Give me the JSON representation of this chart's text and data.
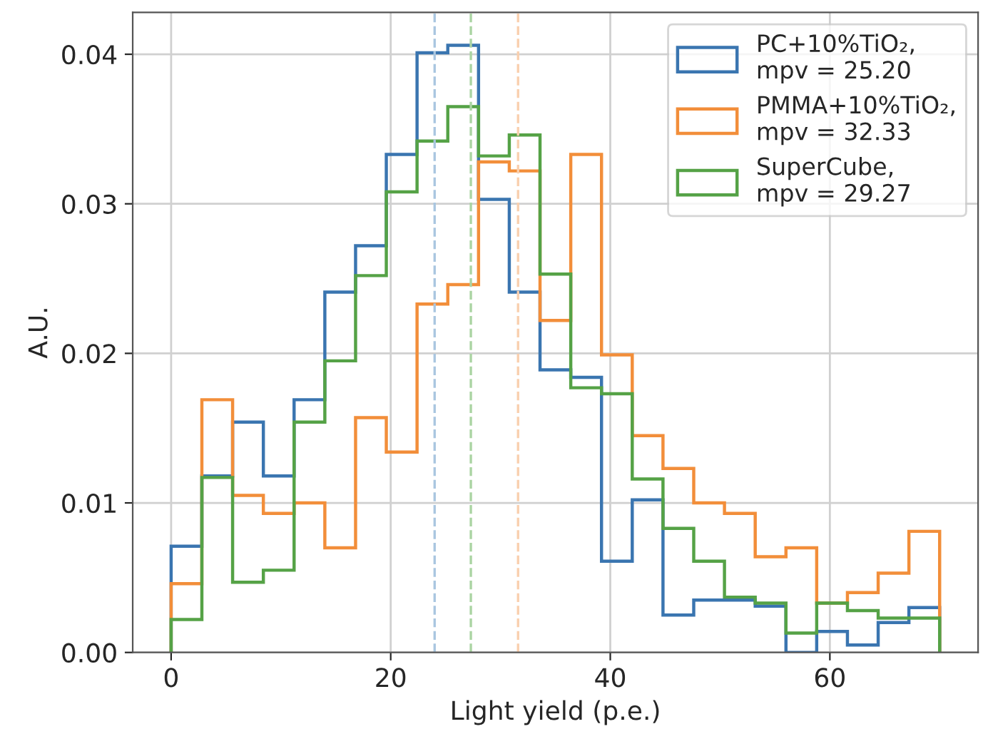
{
  "chart_data": {
    "type": "histogram",
    "xlabel": "Light yield (p.e.)",
    "ylabel": "A.U.",
    "bins": [
      0,
      2.8,
      5.6,
      8.4,
      11.2,
      14,
      16.8,
      19.6,
      22.4,
      25.2,
      28,
      30.8,
      33.6,
      36.4,
      39.2,
      42,
      44.8,
      47.6,
      50.4,
      53.2,
      56,
      58.8,
      61.6,
      64.4,
      67.2,
      70
    ],
    "series": [
      {
        "name": "PC+10%TiO₂,\nmpv = 25.20",
        "color": "#3a75b0",
        "values": [
          0.0071,
          0.0118,
          0.0154,
          0.0118,
          0.0169,
          0.0241,
          0.0272,
          0.0333,
          0.0401,
          0.0406,
          0.0303,
          0.0241,
          0.0189,
          0.0184,
          0.0061,
          0.0102,
          0.0025,
          0.0035,
          0.0035,
          0.0031,
          0.0,
          0.0014,
          0.0005,
          0.002,
          0.003
        ]
      },
      {
        "name": "PMMA+10%TiO₂,\nmpv = 32.33",
        "color": "#f28e3a",
        "values": [
          0.0046,
          0.0169,
          0.0105,
          0.0093,
          0.01,
          0.007,
          0.0157,
          0.0134,
          0.0233,
          0.0246,
          0.0328,
          0.0322,
          0.0222,
          0.0333,
          0.0199,
          0.0145,
          0.0123,
          0.01,
          0.0093,
          0.0064,
          0.007,
          0.0033,
          0.004,
          0.0053,
          0.0081
        ]
      },
      {
        "name": "SuperCube,\nmpv = 29.27",
        "color": "#55a246",
        "values": [
          0.0022,
          0.0117,
          0.0047,
          0.0055,
          0.0154,
          0.0195,
          0.0252,
          0.0308,
          0.0342,
          0.0365,
          0.0332,
          0.0346,
          0.0253,
          0.0177,
          0.0173,
          0.0116,
          0.0083,
          0.0061,
          0.0037,
          0.0033,
          0.0013,
          0.0033,
          0.0028,
          0.0023,
          0.0023
        ]
      }
    ],
    "ref_lines": [
      {
        "axis": "x",
        "value": 24.0,
        "color": "#a9c6e0",
        "line_style": "dashed"
      },
      {
        "axis": "x",
        "value": 27.3,
        "color": "#aad4a2",
        "line_style": "dashed"
      },
      {
        "axis": "x",
        "value": 31.6,
        "color": "#f9cfae",
        "line_style": "dashed"
      }
    ],
    "xlim": [
      -3.5,
      73.5
    ],
    "ylim": [
      0,
      0.0428
    ],
    "xticks": [
      0,
      20,
      40,
      60
    ],
    "yticks": [
      {
        "value": 0,
        "label": "0.00"
      },
      {
        "value": 0.01,
        "label": "0.01"
      },
      {
        "value": 0.02,
        "label": "0.02"
      },
      {
        "value": 0.03,
        "label": "0.03"
      },
      {
        "value": 0.04,
        "label": "0.04"
      }
    ],
    "grid": true,
    "legend": "top right"
  }
}
